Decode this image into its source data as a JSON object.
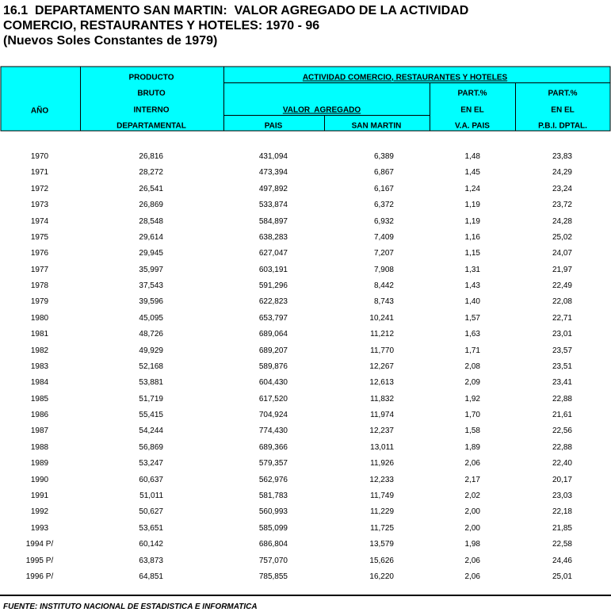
{
  "header": {
    "title": [
      "16.1  DEPARTAMENTO SAN MARTIN:  VALOR AGREGADO DE LA ACTIVIDAD",
      "COMERCIO, RESTAURANTES Y HOTELES: 1970 - 96",
      "(Nuevos Soles Constantes de 1979)"
    ]
  },
  "table": {
    "columns": {
      "year": "AÑO",
      "product": [
        "PRODUCTO",
        "BRUTO",
        "INTERNO",
        "DEPARTAMENTAL"
      ],
      "activity": "ACTIVIDAD COMERCIO, RESTAURANTES Y HOTELES",
      "value_added": "VALOR  AGREGADO",
      "pais": "PAIS",
      "san_martin": "SAN MARTIN",
      "part_va": [
        "PART.%",
        "EN EL",
        "V.A. PAIS"
      ],
      "part_pbi": [
        "PART.%",
        "EN EL",
        "P.B.I. DPTAL."
      ]
    },
    "rows": [
      [
        "1970",
        "26,816",
        "431,094",
        "6,389",
        "1,48",
        "23,83"
      ],
      [
        "1971",
        "28,272",
        "473,394",
        "6,867",
        "1,45",
        "24,29"
      ],
      [
        "1972",
        "26,541",
        "497,892",
        "6,167",
        "1,24",
        "23,24"
      ],
      [
        "1973",
        "26,869",
        "533,874",
        "6,372",
        "1,19",
        "23,72"
      ],
      [
        "1974",
        "28,548",
        "584,897",
        "6,932",
        "1,19",
        "24,28"
      ],
      [
        "1975",
        "29,614",
        "638,283",
        "7,409",
        "1,16",
        "25,02"
      ],
      [
        "1976",
        "29,945",
        "627,047",
        "7,207",
        "1,15",
        "24,07"
      ],
      [
        "1977",
        "35,997",
        "603,191",
        "7,908",
        "1,31",
        "21,97"
      ],
      [
        "1978",
        "37,543",
        "591,296",
        "8,442",
        "1,43",
        "22,49"
      ],
      [
        "1979",
        "39,596",
        "622,823",
        "8,743",
        "1,40",
        "22,08"
      ],
      [
        "1980",
        "45,095",
        "653,797",
        "10,241",
        "1,57",
        "22,71"
      ],
      [
        "1981",
        "48,726",
        "689,064",
        "11,212",
        "1,63",
        "23,01"
      ],
      [
        "1982",
        "49,929",
        "689,207",
        "11,770",
        "1,71",
        "23,57"
      ],
      [
        "1983",
        "52,168",
        "589,876",
        "12,267",
        "2,08",
        "23,51"
      ],
      [
        "1984",
        "53,881",
        "604,430",
        "12,613",
        "2,09",
        "23,41"
      ],
      [
        "1985",
        "51,719",
        "617,520",
        "11,832",
        "1,92",
        "22,88"
      ],
      [
        "1986",
        "55,415",
        "704,924",
        "11,974",
        "1,70",
        "21,61"
      ],
      [
        "1987",
        "54,244",
        "774,430",
        "12,237",
        "1,58",
        "22,56"
      ],
      [
        "1988",
        "56,869",
        "689,366",
        "13,011",
        "1,89",
        "22,88"
      ],
      [
        "1989",
        "53,247",
        "579,357",
        "11,926",
        "2,06",
        "22,40"
      ],
      [
        "1990",
        "60,637",
        "562,976",
        "12,233",
        "2,17",
        "20,17"
      ],
      [
        "1991",
        "51,011",
        "581,783",
        "11,749",
        "2,02",
        "23,03"
      ],
      [
        "1992",
        "50,627",
        "560,993",
        "11,229",
        "2,00",
        "22,18"
      ],
      [
        "1993",
        "53,651",
        "585,099",
        "11,725",
        "2,00",
        "21,85"
      ],
      [
        "1994 P/",
        "60,142",
        "686,804",
        "13,579",
        "1,98",
        "22,58"
      ],
      [
        "1995 P/",
        "63,873",
        "757,070",
        "15,626",
        "2,06",
        "24,46"
      ],
      [
        "1996 P/",
        "64,851",
        "785,855",
        "16,220",
        "2,06",
        "25,01"
      ]
    ]
  },
  "footer": {
    "source": "FUENTE: INSTITUTO NACIONAL DE ESTADISTICA E INFORMATICA"
  }
}
